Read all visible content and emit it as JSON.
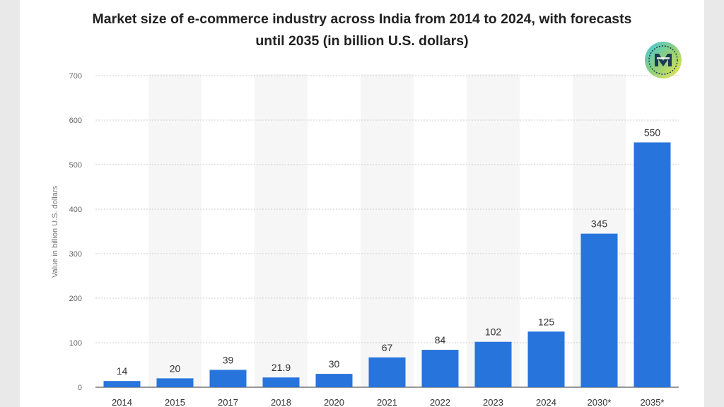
{
  "colors": {
    "bar": "#2874dd",
    "grid": "#cfcfcf",
    "band": "#f6f6f6",
    "side_panel": "#e9e9e9"
  },
  "logo": {
    "icon": "digital-mihir-logo-icon"
  },
  "chart_data": {
    "type": "bar",
    "title": "Market size of e-commerce industry across India from 2014 to 2024, with forecasts until 2035 (in billion U.S. dollars)",
    "title_line1": "Market size of e-commerce industry across India from 2014 to 2024, with forecasts",
    "title_line2": "until 2035 (in billion U.S. dollars)",
    "xlabel": "",
    "ylabel": "Value in billion U.S. dollars",
    "ylim": [
      0,
      700
    ],
    "yticks": [
      0,
      100,
      200,
      300,
      400,
      500,
      600,
      700
    ],
    "grid": true,
    "categories": [
      "2014",
      "2015",
      "2017",
      "2018",
      "2020",
      "2021",
      "2022",
      "2023",
      "2024",
      "2030*",
      "2035*"
    ],
    "values": [
      14,
      20,
      39,
      21.9,
      30,
      67,
      84,
      102,
      125,
      345,
      550
    ],
    "value_labels": [
      "14",
      "20",
      "39",
      "21.9",
      "30",
      "67",
      "84",
      "102",
      "125",
      "345",
      "550"
    ]
  }
}
